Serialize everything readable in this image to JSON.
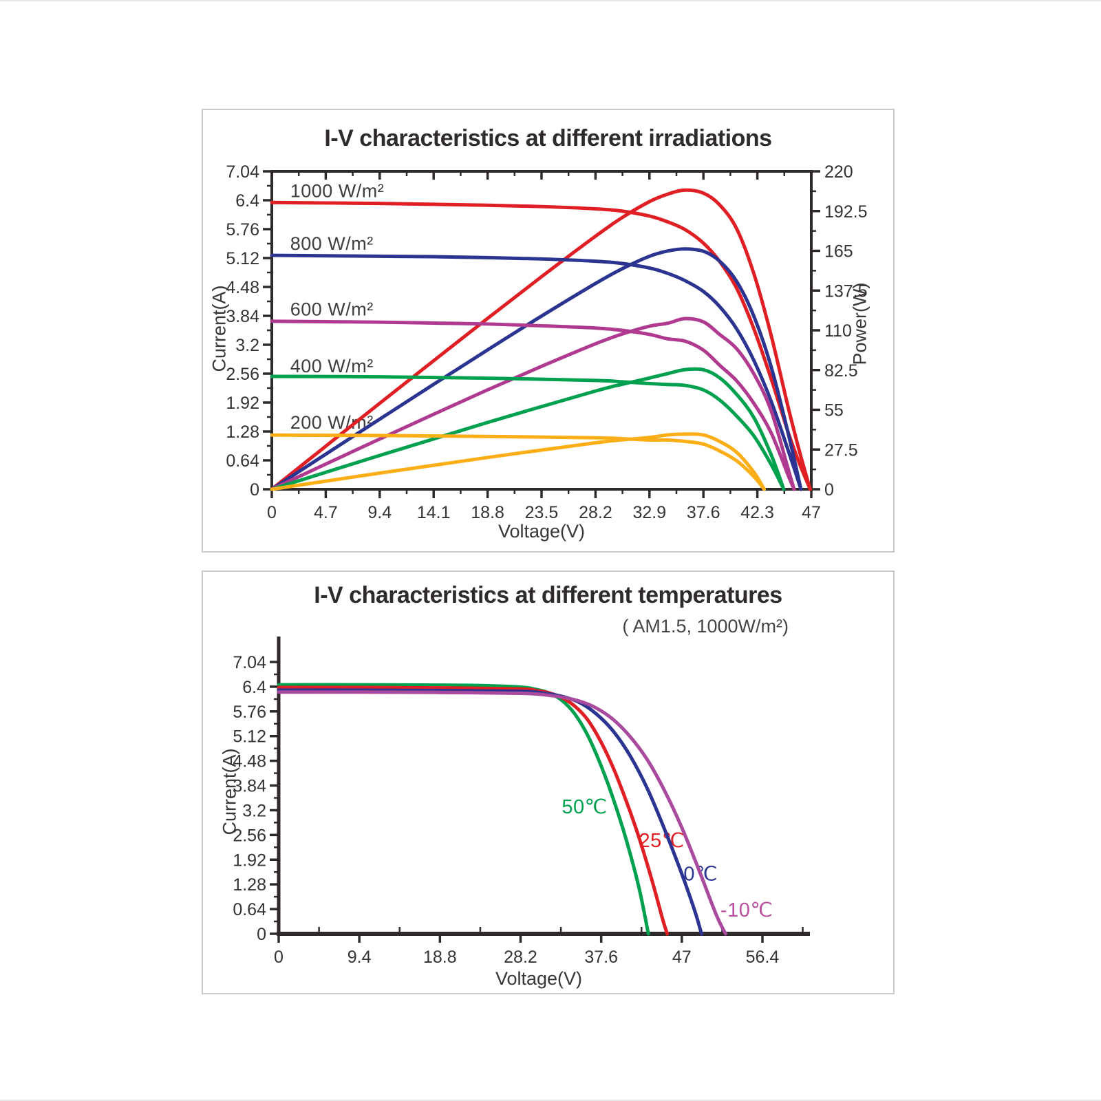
{
  "page": {
    "background": "#ffffff"
  },
  "chart_data": [
    {
      "id": "iv-irradiations",
      "type": "line",
      "title": "I-V characteristics at different irradiations",
      "xlabel": "Voltage(V)",
      "ylabel": "Current(A)",
      "y2label": "Power(W)",
      "xlim": [
        0,
        47
      ],
      "ylim": [
        0,
        7.04
      ],
      "y2lim": [
        0,
        220
      ],
      "grid": false,
      "axis_style": "closed-box-dual-y",
      "x_tick_values": [
        0,
        4.7,
        9.4,
        14.1,
        18.8,
        23.5,
        28.2,
        32.9,
        37.6,
        42.3,
        47
      ],
      "x_tick_labels": [
        "0",
        "4.7",
        "9.4",
        "14.1",
        "18.8",
        "23.5",
        "28.2",
        "32.9",
        "37.6",
        "42.3",
        "47"
      ],
      "y_tick_values": [
        0,
        0.64,
        1.28,
        1.92,
        2.56,
        3.2,
        3.84,
        4.48,
        5.12,
        5.76,
        6.4,
        7.04
      ],
      "y_tick_labels": [
        "0",
        "0.64",
        "1.28",
        "1.92",
        "2.56",
        "3.2",
        "3.84",
        "4.48",
        "5.12",
        "5.76",
        "6.4",
        "7.04"
      ],
      "y2_tick_values": [
        0,
        27.5,
        55,
        82.5,
        110,
        137.5,
        165,
        192.5,
        220
      ],
      "y2_tick_labels": [
        "0",
        "27.5",
        "55",
        "82.5",
        "110",
        "137.5",
        "165",
        "192.5",
        "220"
      ],
      "power_from_iv": true,
      "series": [
        {
          "name": "1000 W/m²",
          "color": "#e01f25",
          "isc": 6.35,
          "voc": 46.9,
          "pmax": 206,
          "points": [
            [
              0,
              6.35
            ],
            [
              4.7,
              6.34
            ],
            [
              9.4,
              6.33
            ],
            [
              14.1,
              6.31
            ],
            [
              18.8,
              6.29
            ],
            [
              23.5,
              6.26
            ],
            [
              28.2,
              6.21
            ],
            [
              30.5,
              6.16
            ],
            [
              32.9,
              6.05
            ],
            [
              34.5,
              5.92
            ],
            [
              36,
              5.75
            ],
            [
              37.6,
              5.45
            ],
            [
              39,
              5.05
            ],
            [
              40.5,
              4.45
            ],
            [
              42,
              3.55
            ],
            [
              43.5,
              2.45
            ],
            [
              45,
              1.25
            ],
            [
              46,
              0.55
            ],
            [
              46.9,
              0
            ]
          ]
        },
        {
          "name": "800 W/m²",
          "color": "#2b3591",
          "isc": 5.18,
          "voc": 46.1,
          "pmax": 166,
          "points": [
            [
              0,
              5.18
            ],
            [
              4.7,
              5.17
            ],
            [
              9.4,
              5.16
            ],
            [
              14.1,
              5.15
            ],
            [
              18.8,
              5.13
            ],
            [
              23.5,
              5.1
            ],
            [
              28.2,
              5.05
            ],
            [
              30.5,
              5.0
            ],
            [
              32.9,
              4.9
            ],
            [
              34.5,
              4.78
            ],
            [
              36,
              4.62
            ],
            [
              37.6,
              4.38
            ],
            [
              39,
              4.05
            ],
            [
              40.5,
              3.55
            ],
            [
              42,
              2.85
            ],
            [
              43.5,
              1.95
            ],
            [
              45,
              0.85
            ],
            [
              46.1,
              0
            ]
          ]
        },
        {
          "name": "600 W/m²",
          "color": "#b03a90",
          "isc": 3.72,
          "voc": 45.5,
          "pmax": 118,
          "points": [
            [
              0,
              3.72
            ],
            [
              4.7,
              3.71
            ],
            [
              9.4,
              3.7
            ],
            [
              14.1,
              3.68
            ],
            [
              18.8,
              3.66
            ],
            [
              23.5,
              3.62
            ],
            [
              28.2,
              3.57
            ],
            [
              30.5,
              3.52
            ],
            [
              32.9,
              3.43
            ],
            [
              34.5,
              3.33
            ],
            [
              36,
              3.28
            ],
            [
              37.6,
              3.08
            ],
            [
              39,
              2.75
            ],
            [
              40.5,
              2.4
            ],
            [
              42,
              1.9
            ],
            [
              43.5,
              1.25
            ],
            [
              45,
              0.3
            ],
            [
              45.5,
              0
            ]
          ]
        },
        {
          "name": "400 W/m²",
          "color": "#00a14e",
          "isc": 2.5,
          "voc": 44.6,
          "pmax": 83,
          "points": [
            [
              0,
              2.5
            ],
            [
              9.4,
              2.49
            ],
            [
              18.8,
              2.46
            ],
            [
              28.2,
              2.41
            ],
            [
              30.5,
              2.38
            ],
            [
              32.9,
              2.34
            ],
            [
              34.5,
              2.32
            ],
            [
              36,
              2.3
            ],
            [
              37.6,
              2.2
            ],
            [
              39,
              1.98
            ],
            [
              40.5,
              1.62
            ],
            [
              42,
              1.18
            ],
            [
              43.5,
              0.55
            ],
            [
              44.6,
              0
            ]
          ]
        },
        {
          "name": "200 W/m²",
          "color": "#fcae17",
          "isc": 1.2,
          "voc": 42.9,
          "pmax": 38,
          "points": [
            [
              0,
              1.2
            ],
            [
              9.4,
              1.19
            ],
            [
              18.8,
              1.17
            ],
            [
              28.2,
              1.14
            ],
            [
              30.5,
              1.12
            ],
            [
              32.9,
              1.09
            ],
            [
              34.5,
              1.09
            ],
            [
              36,
              1.06
            ],
            [
              37.6,
              1.0
            ],
            [
              39,
              0.85
            ],
            [
              40.5,
              0.63
            ],
            [
              42,
              0.28
            ],
            [
              42.9,
              0
            ]
          ]
        }
      ],
      "curve_labels": [
        {
          "text": "1000 W/m²",
          "v": 1.6,
          "i": 6.47,
          "color": "#413d3e"
        },
        {
          "text": "800 W/m²",
          "v": 1.6,
          "i": 5.3,
          "color": "#413d3e"
        },
        {
          "text": "600 W/m²",
          "v": 1.6,
          "i": 3.85,
          "color": "#413d3e"
        },
        {
          "text": "400 W/m²",
          "v": 1.6,
          "i": 2.59,
          "color": "#413d3e"
        },
        {
          "text": "200 W/m²",
          "v": 1.6,
          "i": 1.34,
          "color": "#413d3e"
        }
      ]
    },
    {
      "id": "iv-temperatures",
      "type": "line",
      "title": "I-V characteristics at different temperatures",
      "subtitle": "( AM1.5,  1000W/m²)",
      "xlabel": "Voltage(V)",
      "ylabel": "Current(A)",
      "xlim": [
        0,
        56.4
      ],
      "ylim": [
        0,
        7.04
      ],
      "grid": false,
      "axis_style": "open-L",
      "x_tick_values": [
        0,
        9.4,
        18.8,
        28.2,
        37.6,
        47,
        56.4
      ],
      "x_tick_labels": [
        "0",
        "9.4",
        "18.8",
        "28.2",
        "37.6",
        "47",
        "56.4"
      ],
      "y_tick_values": [
        0,
        0.64,
        1.28,
        1.92,
        2.56,
        3.2,
        3.84,
        4.48,
        5.12,
        5.76,
        6.4,
        7.04
      ],
      "y_tick_labels": [
        "0",
        "0.64",
        "1.28",
        "1.92",
        "2.56",
        "3.2",
        "3.84",
        "4.48",
        "5.12",
        "5.76",
        "6.4",
        "7.04"
      ],
      "power_from_iv": false,
      "series": [
        {
          "name": "50℃",
          "color": "#00a14e",
          "isc": 6.45,
          "voc": 43.1,
          "points": [
            [
              0,
              6.45
            ],
            [
              9.4,
              6.45
            ],
            [
              18.8,
              6.44
            ],
            [
              23.5,
              6.43
            ],
            [
              28.2,
              6.39
            ],
            [
              30,
              6.33
            ],
            [
              31.5,
              6.24
            ],
            [
              33,
              6.05
            ],
            [
              34.5,
              5.7
            ],
            [
              36,
              5.15
            ],
            [
              37.5,
              4.4
            ],
            [
              39,
              3.5
            ],
            [
              40.5,
              2.45
            ],
            [
              42,
              1.2
            ],
            [
              43.1,
              0
            ]
          ]
        },
        {
          "name": "25℃",
          "color": "#e01f25",
          "isc": 6.38,
          "voc": 45.3,
          "points": [
            [
              0,
              6.38
            ],
            [
              9.4,
              6.38
            ],
            [
              18.8,
              6.37
            ],
            [
              28.2,
              6.34
            ],
            [
              30,
              6.3
            ],
            [
              31.5,
              6.24
            ],
            [
              33,
              6.12
            ],
            [
              34.5,
              5.9
            ],
            [
              36,
              5.55
            ],
            [
              37.5,
              5.0
            ],
            [
              39,
              4.3
            ],
            [
              40.5,
              3.45
            ],
            [
              42,
              2.5
            ],
            [
              43.5,
              1.4
            ],
            [
              44.8,
              0.35
            ],
            [
              45.3,
              0
            ]
          ]
        },
        {
          "name": "0℃",
          "color": "#2b3591",
          "isc": 6.31,
          "voc": 49.3,
          "points": [
            [
              0,
              6.31
            ],
            [
              9.4,
              6.31
            ],
            [
              18.8,
              6.3
            ],
            [
              28.2,
              6.28
            ],
            [
              31,
              6.23
            ],
            [
              33,
              6.15
            ],
            [
              35,
              6.0
            ],
            [
              37,
              5.7
            ],
            [
              39,
              5.25
            ],
            [
              41,
              4.6
            ],
            [
              43,
              3.75
            ],
            [
              45,
              2.7
            ],
            [
              47,
              1.55
            ],
            [
              48.5,
              0.6
            ],
            [
              49.3,
              0
            ]
          ]
        },
        {
          "name": "-10℃",
          "color": "#aa4a9e",
          "isc": 6.26,
          "voc": 52.1,
          "points": [
            [
              0,
              6.26
            ],
            [
              9.4,
              6.26
            ],
            [
              18.8,
              6.25
            ],
            [
              28.2,
              6.23
            ],
            [
              31,
              6.19
            ],
            [
              33,
              6.13
            ],
            [
              35,
              6.03
            ],
            [
              37,
              5.85
            ],
            [
              39,
              5.55
            ],
            [
              41,
              5.1
            ],
            [
              43,
              4.5
            ],
            [
              45,
              3.7
            ],
            [
              47,
              2.75
            ],
            [
              49,
              1.65
            ],
            [
              51,
              0.5
            ],
            [
              52.1,
              0
            ]
          ]
        }
      ],
      "curve_labels": [
        {
          "text": "50℃",
          "v": 33.0,
          "i": 3.12,
          "color": "#00a14e"
        },
        {
          "text": "25℃",
          "v": 42.0,
          "i": 2.25,
          "color": "#e01f25"
        },
        {
          "text": "0℃",
          "v": 47.2,
          "i": 1.38,
          "color": "#2b3591"
        },
        {
          "text": "-10℃",
          "v": 51.5,
          "i": 0.45,
          "color": "#bb4f9f"
        }
      ]
    }
  ]
}
